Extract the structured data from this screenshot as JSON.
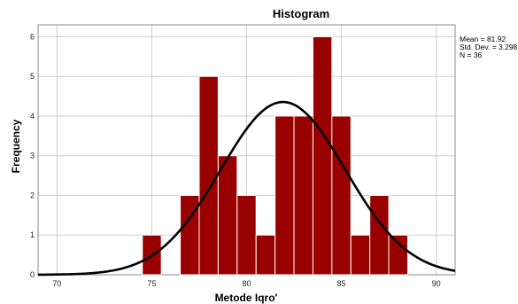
{
  "chart_data": {
    "type": "bar",
    "title": "Histogram",
    "xlabel": "Metode Iqro'",
    "ylabel": "Frequency",
    "xlim": [
      69,
      91
    ],
    "ylim": [
      0,
      6.3
    ],
    "xticks": [
      "70",
      "75",
      "80",
      "85",
      "90"
    ],
    "yticks": [
      "0",
      "1",
      "2",
      "3",
      "4",
      "5",
      "6"
    ],
    "bins": [
      {
        "start": 74.5,
        "end": 75.5,
        "count": 1
      },
      {
        "start": 76.5,
        "end": 77.5,
        "count": 2
      },
      {
        "start": 77.5,
        "end": 78.5,
        "count": 5
      },
      {
        "start": 78.5,
        "end": 79.5,
        "count": 3
      },
      {
        "start": 79.5,
        "end": 80.5,
        "count": 2
      },
      {
        "start": 80.5,
        "end": 81.5,
        "count": 1
      },
      {
        "start": 81.5,
        "end": 82.5,
        "count": 4
      },
      {
        "start": 82.5,
        "end": 83.5,
        "count": 4
      },
      {
        "start": 83.5,
        "end": 84.5,
        "count": 6
      },
      {
        "start": 84.5,
        "end": 85.5,
        "count": 4
      },
      {
        "start": 85.5,
        "end": 86.5,
        "count": 1
      },
      {
        "start": 86.5,
        "end": 87.5,
        "count": 2
      },
      {
        "start": 87.5,
        "end": 88.5,
        "count": 1
      }
    ],
    "normal_curve": {
      "mean": 81.92,
      "sd": 3.298,
      "n": 36,
      "bin_width": 1
    },
    "stats": {
      "mean": "Mean = 81.92",
      "sd": "Std. Dev. = 3.298",
      "n": "N = 36"
    },
    "colors": {
      "bar": "#990000",
      "bar_edge": "#ffffff",
      "curve": "#000000",
      "grid": "#cfcfcf"
    },
    "grid": true
  }
}
